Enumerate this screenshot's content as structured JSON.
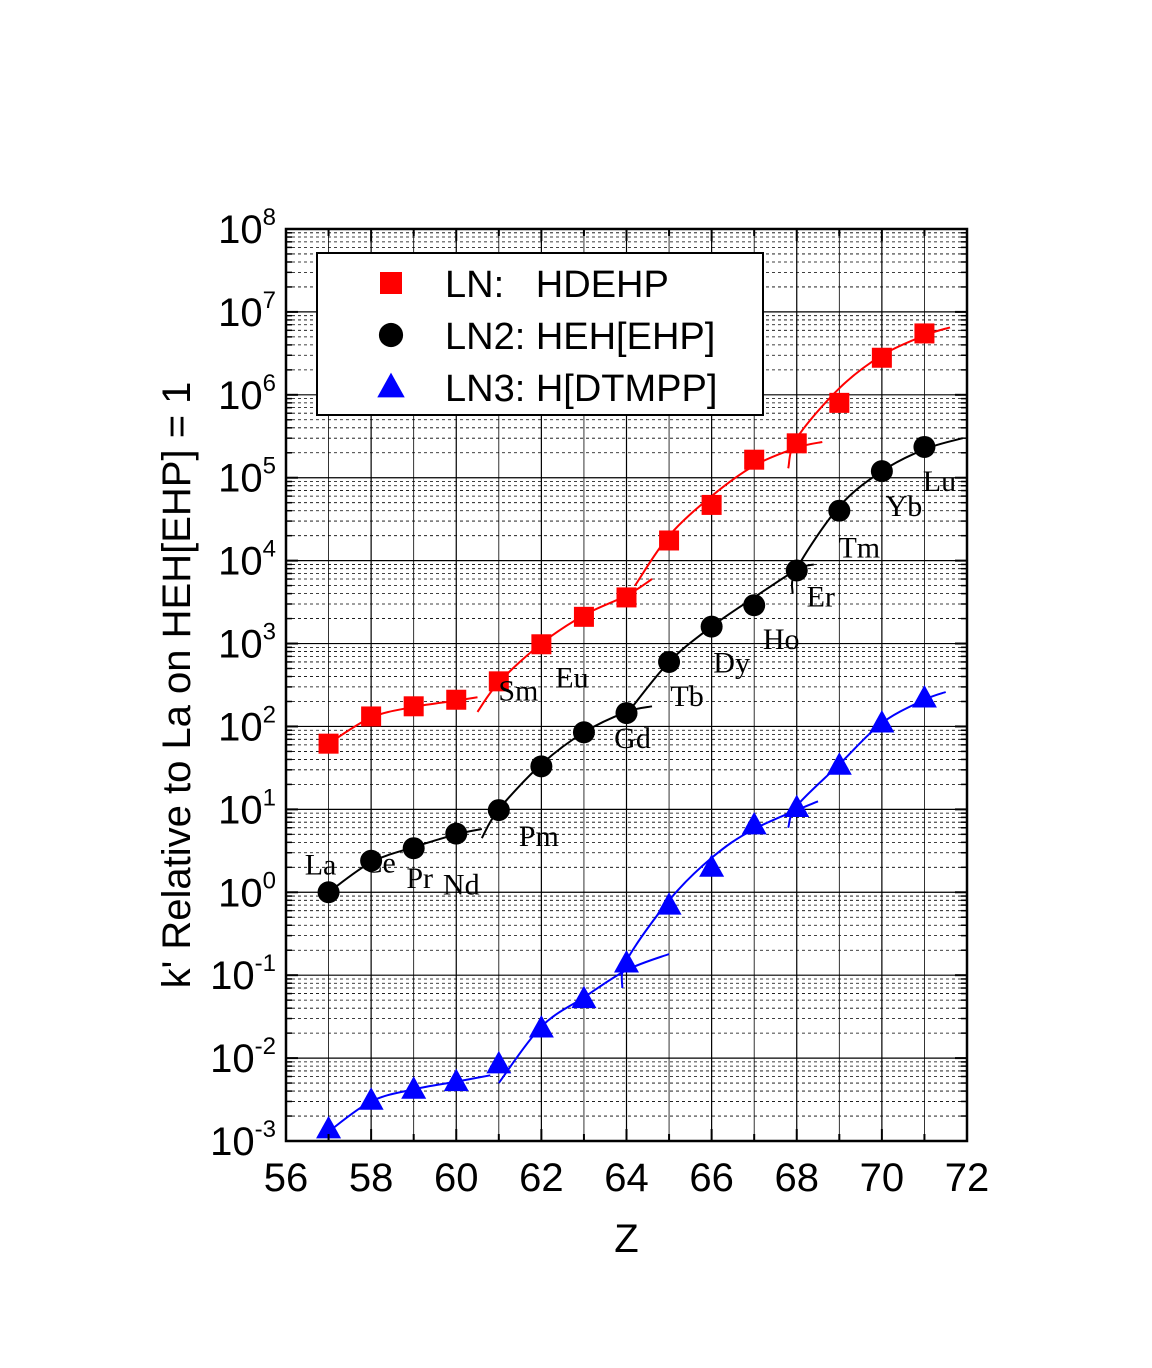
{
  "chart_data": {
    "type": "scatter",
    "xlabel": "Z",
    "ylabel": "k' Relative to La on HEH[EHP] = 1",
    "xlim": [
      56,
      72
    ],
    "x_ticks": [
      56,
      58,
      60,
      62,
      64,
      66,
      68,
      70,
      72
    ],
    "y_scale": "log",
    "ylim": [
      0.001,
      100000000
    ],
    "y_ticks": [
      {
        "base": "10",
        "exp": "-3"
      },
      {
        "base": "10",
        "exp": "-2"
      },
      {
        "base": "10",
        "exp": "-1"
      },
      {
        "base": "10",
        "exp": "0"
      },
      {
        "base": "10",
        "exp": "1"
      },
      {
        "base": "10",
        "exp": "2"
      },
      {
        "base": "10",
        "exp": "3"
      },
      {
        "base": "10",
        "exp": "4"
      },
      {
        "base": "10",
        "exp": "5"
      },
      {
        "base": "10",
        "exp": "6"
      },
      {
        "base": "10",
        "exp": "7"
      },
      {
        "base": "10",
        "exp": "8"
      }
    ],
    "grid": true,
    "legend_position": "top-left",
    "series": [
      {
        "name": "LN:   HDEHP",
        "color": "#ff0000",
        "marker": "square",
        "x": [
          57,
          58,
          59,
          60,
          61,
          62,
          63,
          64,
          65,
          66,
          67,
          68,
          69,
          70,
          71
        ],
        "y": [
          62,
          132,
          175,
          210,
          350,
          980,
          2100,
          3600,
          17500,
          47000,
          165000,
          260000,
          800000,
          2800000,
          5500000
        ],
        "fits": [
          {
            "x": [
              57,
              58,
              59,
              60,
              60.5
            ],
            "y": [
              62,
              128,
              172,
              205,
              225
            ]
          },
          {
            "x": [
              60.5,
              61,
              62,
              63,
              64,
              64.6
            ],
            "y": [
              150,
              340,
              1000,
              2200,
              3800,
              6000
            ]
          },
          {
            "x": [
              64.2,
              65,
              66,
              67,
              68,
              68.6
            ],
            "y": [
              5000,
              20000,
              60000,
              140000,
              230000,
              270000
            ]
          },
          {
            "x": [
              67.8,
              68,
              69,
              70,
              71,
              71.6
            ],
            "y": [
              130000,
              300000,
              1200000,
              3000000,
              5200000,
              6500000
            ]
          }
        ]
      },
      {
        "name": "LN2: HEH[EHP]",
        "color": "#000000",
        "marker": "circle",
        "x": [
          57,
          58,
          59,
          60,
          61,
          62,
          63,
          64,
          65,
          66,
          67,
          68,
          69,
          70,
          71
        ],
        "y": [
          1.0,
          2.4,
          3.4,
          5.1,
          9.8,
          33,
          85,
          145,
          600,
          1600,
          2900,
          7600,
          40000,
          120000,
          235000
        ],
        "labels": [
          "La",
          "Ce",
          "Pr",
          "Nd",
          "Pm",
          "Sm",
          "Eu",
          "Gd",
          "Tb",
          "Dy",
          "Ho",
          "Er",
          "Tm",
          "Yb",
          "Lu"
        ],
        "fits": [
          {
            "x": [
              57,
              58,
              59,
              60,
              60.6
            ],
            "y": [
              1.0,
              2.3,
              3.5,
              5.0,
              5.8
            ]
          },
          {
            "x": [
              60.6,
              61,
              62,
              63,
              64,
              64.6
            ],
            "y": [
              4.5,
              10,
              35,
              85,
              150,
              175
            ]
          },
          {
            "x": [
              64.0,
              65,
              66,
              67,
              68,
              68.4
            ],
            "y": [
              140,
              600,
              1600,
              3600,
              7800,
              9000
            ]
          },
          {
            "x": [
              67.9,
              68,
              69,
              70,
              71,
              71.9
            ],
            "y": [
              4000,
              8000,
              45000,
              120000,
              220000,
              300000
            ]
          }
        ]
      },
      {
        "name": "LN3: H[DTMPP]",
        "color": "#0000ff",
        "marker": "triangle",
        "x": [
          57,
          58,
          59,
          60,
          61,
          62,
          63,
          64,
          65,
          66,
          67,
          68,
          69,
          70,
          71
        ],
        "y": [
          0.0014,
          0.0031,
          0.0042,
          0.0052,
          0.0085,
          0.023,
          0.052,
          0.14,
          0.7,
          2.0,
          6.5,
          10.5,
          34,
          110,
          220
        ],
        "fits": [
          {
            "x": [
              57,
              58,
              59,
              60,
              60.8
            ],
            "y": [
              0.0013,
              0.003,
              0.0042,
              0.0052,
              0.0062
            ]
          },
          {
            "x": [
              61.0,
              62,
              63,
              64,
              65
            ],
            "y": [
              0.005,
              0.024,
              0.054,
              0.115,
              0.18
            ]
          },
          {
            "x": [
              63.9,
              64,
              65,
              66,
              67,
              68.5
            ],
            "y": [
              0.07,
              0.15,
              0.8,
              2.6,
              5.8,
              12.5
            ]
          },
          {
            "x": [
              67.8,
              68,
              69,
              70,
              71,
              71.5
            ],
            "y": [
              6,
              11,
              35,
              110,
              210,
              260
            ]
          }
        ]
      }
    ]
  }
}
